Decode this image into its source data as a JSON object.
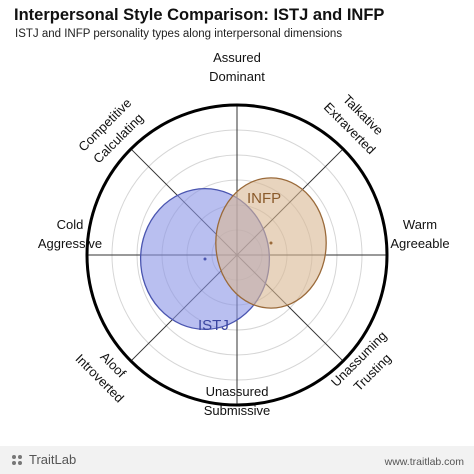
{
  "chart_data": {
    "type": "radar-ellipse",
    "title": "Interpersonal Style Comparison: ISTJ and INFP",
    "subtitle": "ISTJ and INFP personality types along interpersonal dimensions",
    "axes": {
      "top": [
        "Assured",
        "Dominant"
      ],
      "bottom": [
        "Unassured",
        "Submissive"
      ],
      "left": [
        "Cold",
        "Aggressive"
      ],
      "right": [
        "Warm",
        "Agreeable"
      ],
      "top_left": [
        "Competitive",
        "Calculating"
      ],
      "top_right": [
        "Talkative",
        "Extraverted"
      ],
      "bottom_left": [
        "Aloof",
        "Introverted"
      ],
      "bottom_right": [
        "Unassuming",
        "Trusting"
      ]
    },
    "rings": 5,
    "series": [
      {
        "name": "ISTJ",
        "cx": -0.32,
        "cy": 0.04,
        "rx": 0.56,
        "ry": 0.67,
        "fill": "#8a94e6",
        "stroke": "#4a55b0",
        "label_color": "#3a45a0"
      },
      {
        "name": "INFP",
        "cx": 0.34,
        "cy": -0.12,
        "rx": 0.48,
        "ry": 0.62,
        "fill": "#d8b893",
        "stroke": "#9a6a3a",
        "label_color": "#8a5a2a"
      }
    ]
  },
  "footer": {
    "brand": "TraitLab",
    "url": "www.traitlab.com"
  }
}
